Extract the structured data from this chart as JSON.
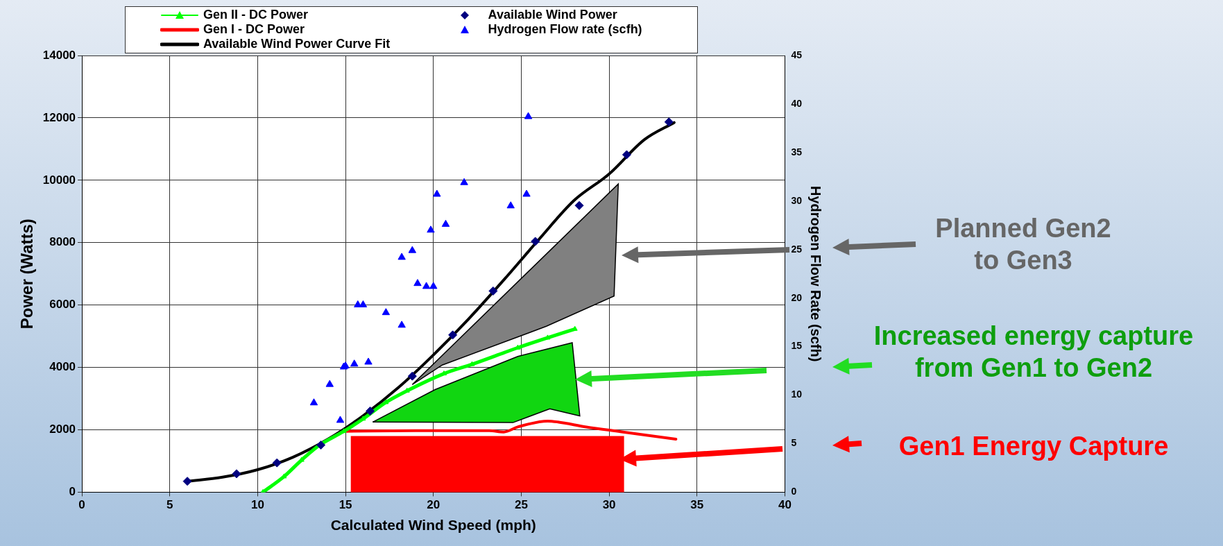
{
  "chart_data": {
    "type": "line",
    "xlabel": "Calculated Wind Speed (mph)",
    "ylabel": "Power (Watts)",
    "y2label": "Hydrogen Flow Rate (scfh)",
    "xlim": [
      0,
      40
    ],
    "xticks": [
      0,
      5,
      10,
      15,
      20,
      25,
      30,
      35,
      40
    ],
    "ylim": [
      0,
      14000
    ],
    "yticks": [
      0,
      2000,
      4000,
      6000,
      8000,
      10000,
      12000,
      14000
    ],
    "y2lim": [
      0,
      45
    ],
    "y2ticks": [
      0,
      5,
      10,
      15,
      20,
      25,
      30,
      35,
      40,
      45
    ],
    "grid": true,
    "legend": "top",
    "series": [
      {
        "name": "Gen II - DC Power",
        "marker": "triangle",
        "color": "#00ff00",
        "x": [
          10.3,
          11.5,
          12.5,
          13.5,
          14.9,
          16,
          17.3,
          18.5,
          20.6,
          22.2,
          24.8,
          26.5,
          28.05
        ],
        "values": [
          0,
          500,
          1030,
          1500,
          1950,
          2350,
          2880,
          3250,
          3800,
          4100,
          4630,
          4950,
          5230
        ]
      },
      {
        "name": "Gen I - DC Power",
        "marker": "none",
        "color": "#ff0000",
        "x": [
          14.9,
          18.97,
          23.18,
          24.0,
          24.8,
          26.5,
          27.08,
          28.7,
          30.65,
          33.8
        ],
        "values": [
          1950,
          1970,
          1970,
          1930,
          2090,
          2280,
          2250,
          2090,
          1940,
          1700
        ]
      },
      {
        "name": "Available Wind Power Curve Fit",
        "marker": "none",
        "color": "#000000",
        "x": [
          6,
          8,
          10,
          12,
          14,
          16,
          18,
          20,
          22,
          24,
          26,
          28,
          30,
          32,
          33.7
        ],
        "values": [
          350,
          480,
          720,
          1120,
          1700,
          2450,
          3350,
          4400,
          5550,
          6800,
          8100,
          9350,
          10200,
          11300,
          11850
        ]
      },
      {
        "name": "Available Wind Power",
        "type": "scatter",
        "marker": "diamond",
        "color": "#000080",
        "x": [
          6,
          8.8,
          11.1,
          13.6,
          16.4,
          18.8,
          21.1,
          23.4,
          25.8,
          28.3,
          31,
          33.4
        ],
        "values": [
          350,
          590,
          940,
          1510,
          2600,
          3720,
          5040,
          6450,
          8040,
          9190,
          10820,
          11870
        ]
      },
      {
        "name": "Hydrogen Flow rate (scfh)",
        "type": "scatter",
        "marker": "triangle",
        "color": "#0000ff",
        "axis": "y2",
        "x": [
          13.2,
          14.1,
          14.7,
          14.9,
          15,
          15.5,
          15.7,
          16,
          16.3,
          17.3,
          18.2,
          18.2,
          18.8,
          19.1,
          19.6,
          20,
          19.85,
          20.2,
          20.7,
          21.75,
          24.4,
          25.3,
          25.4
        ],
        "values": [
          9.2,
          11.1,
          7.4,
          12.9,
          13,
          13.2,
          19.3,
          19.3,
          13.4,
          18.5,
          17.2,
          24.2,
          24.9,
          21.5,
          21.2,
          21.2,
          27,
          30.7,
          27.6,
          31.9,
          29.5,
          30.7,
          38.7
        ]
      }
    ],
    "annotations": [
      "Planned Gen2 to Gen3",
      "Increased energy capture from Gen1 to Gen2",
      "Gen1 Energy Capture"
    ]
  }
}
